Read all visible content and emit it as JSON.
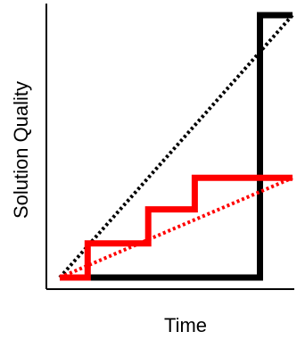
{
  "chart_data": {
    "type": "line",
    "title": "",
    "xlabel": "Time",
    "ylabel": "Solution Quality",
    "xlim": [
      0,
      100
    ],
    "ylim": [
      0,
      100
    ],
    "grid": false,
    "legend": "none",
    "series": [
      {
        "color": "#000000",
        "style": "solid",
        "points": [
          [
            0,
            0
          ],
          [
            14,
            0
          ],
          [
            86,
            0
          ],
          [
            86,
            100
          ],
          [
            100,
            100
          ]
        ]
      },
      {
        "color": "#000000",
        "style": "dotted",
        "points": [
          [
            0,
            0
          ],
          [
            100,
            100
          ]
        ]
      },
      {
        "color": "#ff0000",
        "style": "solid",
        "points": [
          [
            0,
            0
          ],
          [
            12,
            0
          ],
          [
            12,
            13
          ],
          [
            38,
            13
          ],
          [
            38,
            26
          ],
          [
            58,
            26
          ],
          [
            58,
            38
          ],
          [
            100,
            38
          ]
        ]
      },
      {
        "color": "#ff0000",
        "style": "dotted",
        "points": [
          [
            0,
            0
          ],
          [
            100,
            38
          ]
        ]
      }
    ]
  }
}
